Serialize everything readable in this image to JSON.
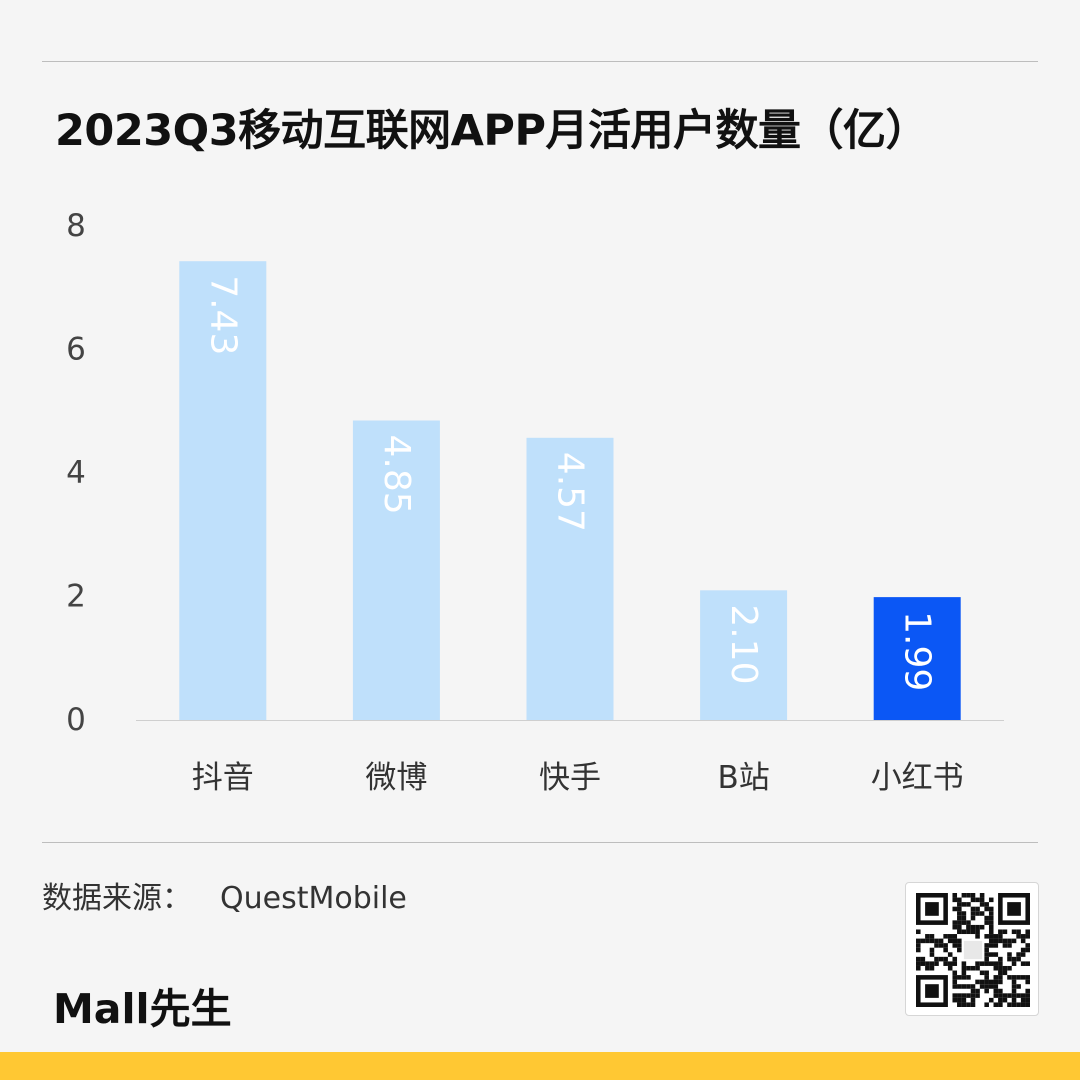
{
  "title": "2023Q3移动互联网APP月活用户数量（亿）",
  "source_label": "数据来源：",
  "source_name": "QuestMobile",
  "logo_text": "Mall先生",
  "qr_icon": "qr-code-icon",
  "colors": {
    "bar_default": "#bfe0fb",
    "bar_highlight": "#0b57f5",
    "bar_label": "#ffffff",
    "axis_text": "#444444",
    "bottom_bar": "#ffc833"
  },
  "chart_data": {
    "type": "bar",
    "title": "2023Q3移动互联网APP月活用户数量（亿）",
    "xlabel": "",
    "ylabel": "",
    "categories": [
      "抖音",
      "微博",
      "快手",
      "B站",
      "小红书"
    ],
    "values": [
      7.43,
      4.85,
      4.57,
      2.1,
      1.99
    ],
    "value_labels": [
      "7.43",
      "4.85",
      "4.57",
      "2.10",
      "1.99"
    ],
    "highlight_index": 4,
    "ylim": [
      0,
      8
    ],
    "yticks": [
      0,
      2,
      4,
      6,
      8
    ],
    "grid": false,
    "data_label_rotation": "vertical"
  }
}
